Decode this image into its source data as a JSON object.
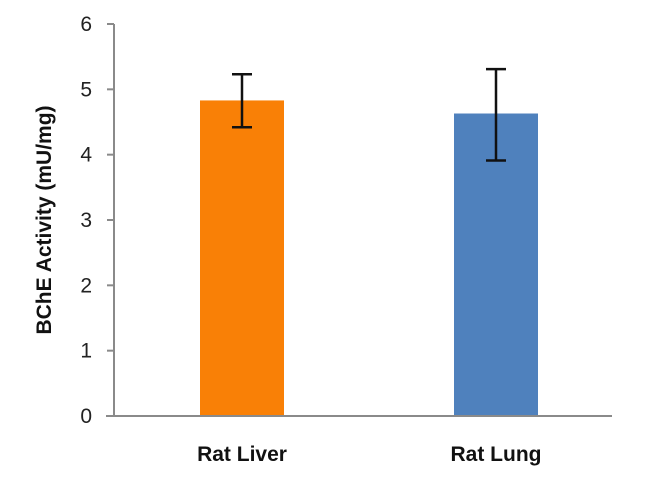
{
  "chart_data": {
    "type": "bar",
    "title": "",
    "xlabel": "",
    "ylabel": "BChE Activity (mU/mg)",
    "ylim": [
      0,
      6
    ],
    "yticks": [
      0,
      1,
      2,
      3,
      4,
      5,
      6
    ],
    "ytick_labels": [
      "0",
      "1",
      "2",
      "3",
      "4",
      "5",
      "6"
    ],
    "grid": false,
    "categories": [
      "Rat Liver",
      "Rat Lung"
    ],
    "values": [
      4.83,
      4.63
    ],
    "error_low": [
      4.42,
      3.91
    ],
    "error_high": [
      5.23,
      5.31
    ],
    "colors": [
      "#f98006",
      "#4f81bd"
    ],
    "axis_color": "#8a8a8a",
    "error_color": "#111111"
  }
}
